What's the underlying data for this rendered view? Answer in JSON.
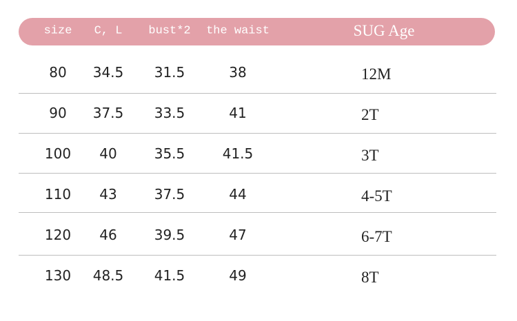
{
  "table": {
    "header": [
      "size",
      "C, L",
      "bust*2",
      "the waist",
      "SUG Age"
    ],
    "rows": [
      [
        "80",
        "34.5",
        "31.5",
        "38",
        "12M"
      ],
      [
        "90",
        "37.5",
        "33.5",
        "41",
        "2T"
      ],
      [
        "100",
        "40",
        "35.5",
        "41.5",
        "3T"
      ],
      [
        "110",
        "43",
        "37.5",
        "44",
        "4-5T"
      ],
      [
        "120",
        "46",
        "39.5",
        "47",
        "6-7T"
      ],
      [
        "130",
        "48.5",
        "41.5",
        "49",
        "8T"
      ]
    ]
  }
}
